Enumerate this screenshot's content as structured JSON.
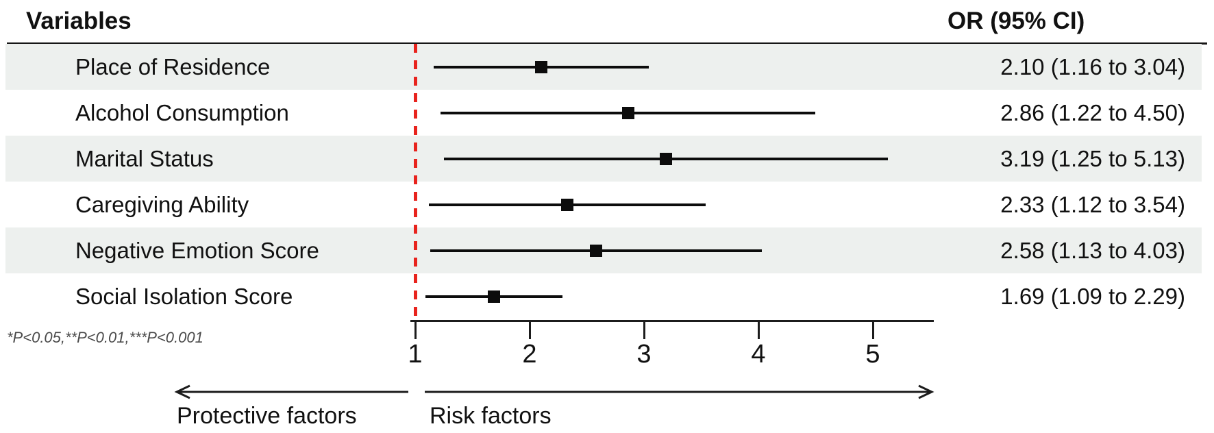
{
  "chart_data": {
    "type": "forest",
    "columns": {
      "left": "Variables",
      "right": "OR (95% CI)"
    },
    "x_axis": {
      "min": 1,
      "max": 5,
      "ticks": [
        1,
        2,
        3,
        4,
        5
      ],
      "reference_line": 1,
      "grid": false
    },
    "rows": [
      {
        "label": "Place of Residence",
        "or": 2.1,
        "ci_low": 1.16,
        "ci_high": 3.04,
        "or_label": "2.10 (1.16 to 3.04)"
      },
      {
        "label": "Alcohol Consumption",
        "or": 2.86,
        "ci_low": 1.22,
        "ci_high": 4.5,
        "or_label": "2.86 (1.22 to 4.50)"
      },
      {
        "label": "Marital Status",
        "or": 3.19,
        "ci_low": 1.25,
        "ci_high": 5.13,
        "or_label": "3.19 (1.25 to 5.13)"
      },
      {
        "label": "Caregiving Ability",
        "or": 2.33,
        "ci_low": 1.12,
        "ci_high": 3.54,
        "or_label": "2.33 (1.12 to 3.54)"
      },
      {
        "label": "Negative Emotion Score",
        "or": 2.58,
        "ci_low": 1.13,
        "ci_high": 4.03,
        "or_label": "2.58 (1.13 to 4.03)"
      },
      {
        "label": "Social Isolation Score",
        "or": 1.69,
        "ci_low": 1.09,
        "ci_high": 2.29,
        "or_label": "1.69 (1.09 to 2.29)"
      }
    ],
    "footnote": "*P<0.05,**P<0.01,***P<0.001",
    "direction_labels": {
      "left": "Protective factors",
      "right": "Risk factors"
    },
    "colors": {
      "reference_line": "#e8231d",
      "stripe": "#edf0ee",
      "marker": "#0c0c0c",
      "text": "#111111",
      "footnote": "#4a4a4a"
    }
  }
}
